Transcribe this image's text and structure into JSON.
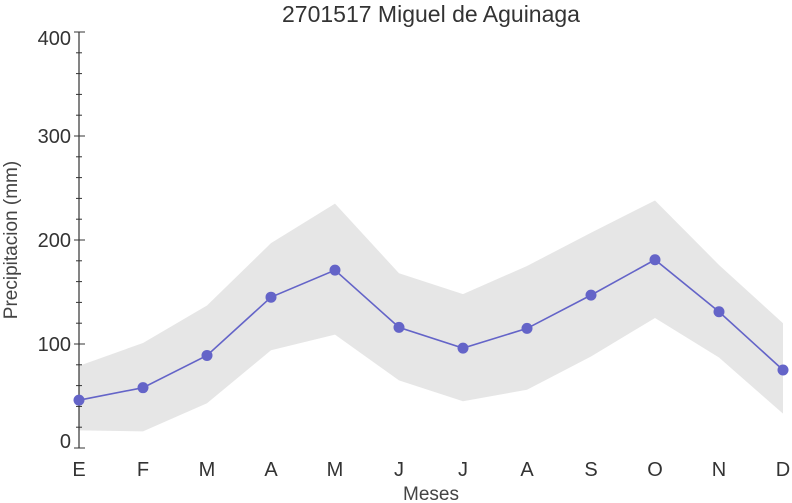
{
  "chart_data": {
    "type": "line",
    "title": "2701517 Miguel de Aguinaga",
    "xlabel": "Meses",
    "ylabel": "Precipitacion (mm)",
    "categories": [
      "E",
      "F",
      "M",
      "A",
      "M",
      "J",
      "J",
      "A",
      "S",
      "O",
      "N",
      "D"
    ],
    "ylim": [
      0,
      400
    ],
    "yticks": [
      0,
      100,
      200,
      300,
      400
    ],
    "series": [
      {
        "values": [
          46,
          58,
          89,
          145,
          171,
          116,
          96,
          115,
          147,
          181,
          131,
          75
        ],
        "color": "#6464c8",
        "marker": "circle"
      }
    ],
    "band": {
      "upper": [
        79,
        101,
        137,
        197,
        235,
        168,
        148,
        175,
        207,
        238,
        176,
        120
      ],
      "lower": [
        17,
        16,
        43,
        94,
        109,
        65,
        45,
        56,
        88,
        125,
        87,
        33
      ],
      "color": "#e6e6e6"
    },
    "axis_color": "#333333",
    "grid": false,
    "legend": "none"
  }
}
